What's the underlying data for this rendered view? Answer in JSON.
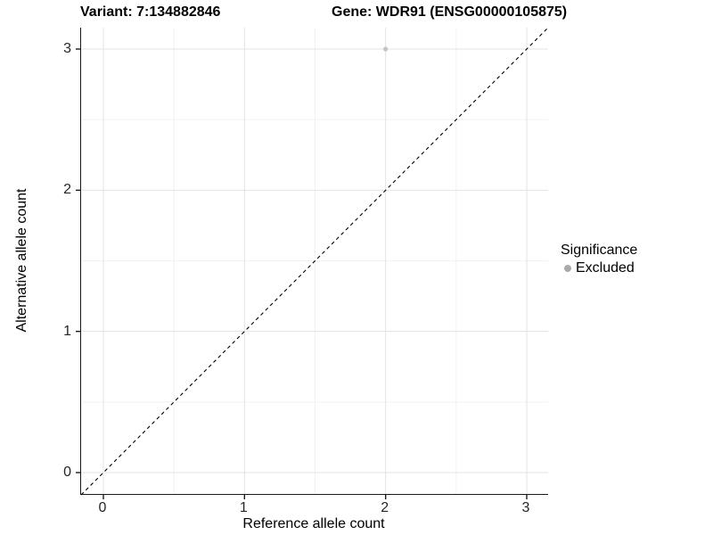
{
  "titles": {
    "variant": "Variant: 7:134882846",
    "gene": "Gene: WDR91 (ENSG00000105875)"
  },
  "colors": {
    "background": "#ffffff",
    "grid_major": "#e3e3e3",
    "grid_minor": "#f1f1f1",
    "axis_line": "#1a1a1a",
    "reference_line": "#000000",
    "point": "#c4c4c4",
    "legend_dot": "#aaaaaa"
  },
  "chart_data": {
    "type": "scatter",
    "title": "Variant: 7:134882846   Gene: WDR91 (ENSG00000105875)",
    "xlabel": "Reference allele count",
    "ylabel": "Alternative allele count",
    "xlim": [
      -0.15,
      3.15
    ],
    "ylim": [
      -0.15,
      3.15
    ],
    "x_ticks": [
      0,
      1,
      2,
      3
    ],
    "y_ticks": [
      0,
      1,
      2,
      3
    ],
    "x_minor_ticks": [
      0.5,
      1.5,
      2.5
    ],
    "y_minor_ticks": [
      0.5,
      1.5,
      2.5
    ],
    "grid": true,
    "reference_line": {
      "type": "identity y = x",
      "style": "dashed",
      "color": "#000000"
    },
    "series": [
      {
        "name": "Excluded",
        "color": "#c4c4c4",
        "points": [
          {
            "x": 2,
            "y": 3
          }
        ]
      }
    ],
    "legend": {
      "title": "Significance",
      "position": "right",
      "items": [
        {
          "label": "Excluded",
          "color": "#aaaaaa"
        }
      ]
    }
  }
}
